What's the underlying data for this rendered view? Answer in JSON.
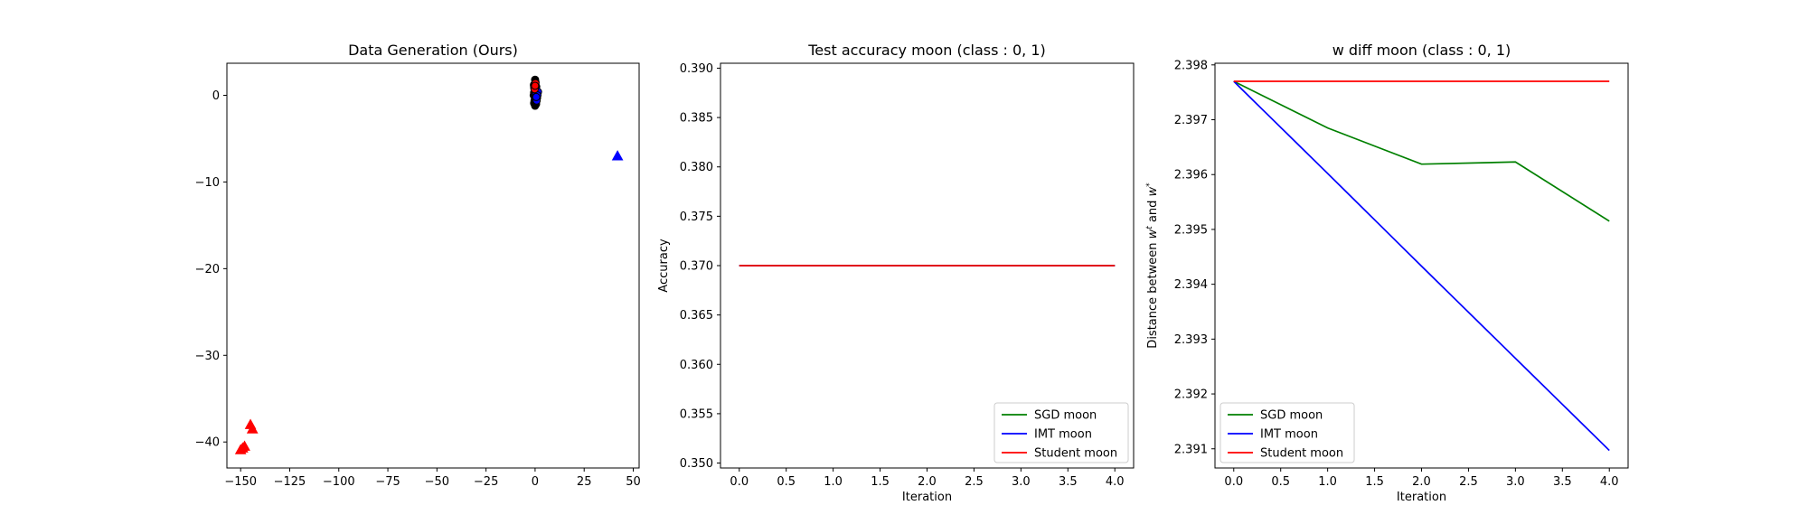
{
  "chart_data": [
    {
      "type": "scatter",
      "title": "Data Generation (Ours)",
      "xlabel": "",
      "ylabel": "",
      "xlim": [
        -157,
        53
      ],
      "ylim": [
        -43,
        3.7
      ],
      "xticks": [
        -150,
        -125,
        -100,
        -75,
        -50,
        -25,
        0,
        25,
        50
      ],
      "xtick_labels": [
        "−150",
        "−125",
        "−100",
        "−75",
        "−50",
        "−25",
        "0",
        "25",
        "50"
      ],
      "yticks": [
        0,
        -10,
        -20,
        -30,
        -40
      ],
      "ytick_labels": [
        "0",
        "−10",
        "−20",
        "−30",
        "−40"
      ],
      "grid": false,
      "groups": [
        {
          "marker": "circle",
          "color": "#000000",
          "points": [
            [
              0,
              0
            ],
            [
              0.5,
              0.5
            ],
            [
              -0.5,
              0.3
            ],
            [
              0.3,
              -0.4
            ],
            [
              -0.3,
              -0.6
            ],
            [
              0.6,
              1.0
            ],
            [
              -0.6,
              1.2
            ],
            [
              0.2,
              1.5
            ],
            [
              -0.2,
              -1.0
            ],
            [
              0.4,
              -0.8
            ],
            [
              -0.4,
              0.8
            ],
            [
              0.1,
              0.2
            ],
            [
              -0.1,
              -0.2
            ],
            [
              0.7,
              0.0
            ],
            [
              -0.7,
              0.0
            ],
            [
              0.0,
              1.8
            ],
            [
              0.0,
              -1.2
            ],
            [
              0.5,
              -1.0
            ],
            [
              -0.5,
              -0.9
            ],
            [
              0.2,
              0.6
            ]
          ]
        },
        {
          "marker": "circle",
          "color": "#0000ff",
          "points": [
            [
              0.5,
              0.2
            ],
            [
              1.0,
              -0.3
            ],
            [
              1.5,
              0.4
            ],
            [
              0.8,
              -0.6
            ],
            [
              1.2,
              0.0
            ],
            [
              0.6,
              -0.2
            ]
          ]
        },
        {
          "marker": "circle",
          "color": "#ff0000",
          "points": [
            [
              -0.5,
              1.0
            ],
            [
              0.2,
              1.4
            ],
            [
              -0.2,
              0.7
            ],
            [
              0.0,
              1.1
            ]
          ]
        },
        {
          "marker": "triangle",
          "color": "#0000ff",
          "points": [
            [
              42,
              -7
            ]
          ]
        },
        {
          "marker": "triangle",
          "color": "#ff0000",
          "points": [
            [
              -149,
              -40.7
            ],
            [
              -148,
              -40.5
            ],
            [
              -145,
              -38.0
            ],
            [
              -144,
              -38.5
            ],
            [
              -150,
              -40.9
            ]
          ]
        }
      ]
    },
    {
      "type": "line",
      "title": "Test accuracy moon (class : 0, 1)",
      "xlabel": "Iteration",
      "ylabel": "Accuracy",
      "xlim": [
        -0.2,
        4.2
      ],
      "ylim": [
        0.3495,
        0.3905
      ],
      "xticks": [
        0,
        0.5,
        1,
        1.5,
        2,
        2.5,
        3,
        3.5,
        4
      ],
      "xtick_labels": [
        "0.0",
        "0.5",
        "1.0",
        "1.5",
        "2.0",
        "2.5",
        "3.0",
        "3.5",
        "4.0"
      ],
      "yticks": [
        0.35,
        0.355,
        0.36,
        0.365,
        0.37,
        0.375,
        0.38,
        0.385,
        0.39
      ],
      "ytick_labels": [
        "0.350",
        "0.355",
        "0.360",
        "0.365",
        "0.370",
        "0.375",
        "0.380",
        "0.385",
        "0.390"
      ],
      "grid": false,
      "legend_position": "bottom-right",
      "x": [
        0,
        1,
        2,
        3,
        4
      ],
      "series": [
        {
          "name": "SGD moon",
          "color": "#008000",
          "values": [
            0.37,
            0.37,
            0.37,
            0.37,
            0.37
          ]
        },
        {
          "name": "IMT moon",
          "color": "#0000ff",
          "values": [
            0.37,
            0.37,
            0.37,
            0.37,
            0.37
          ]
        },
        {
          "name": "Student moon",
          "color": "#ff0000",
          "values": [
            0.37,
            0.37,
            0.37,
            0.37,
            0.37
          ]
        }
      ]
    },
    {
      "type": "line",
      "title": "w diff moon (class : 0, 1)",
      "xlabel": "Iteration",
      "ylabel": "Distance between w^t and w^*",
      "ylabel_parts": {
        "prefix": "Distance between ",
        "w1": "w",
        "sup1": "t",
        "middle": " and ",
        "w2": "w",
        "sup2": "*"
      },
      "xlim": [
        -0.2,
        4.2
      ],
      "ylim": [
        2.39065,
        2.39803
      ],
      "xticks": [
        0,
        0.5,
        1,
        1.5,
        2,
        2.5,
        3,
        3.5,
        4
      ],
      "xtick_labels": [
        "0.0",
        "0.5",
        "1.0",
        "1.5",
        "2.0",
        "2.5",
        "3.0",
        "3.5",
        "4.0"
      ],
      "yticks": [
        2.391,
        2.392,
        2.393,
        2.394,
        2.395,
        2.396,
        2.397,
        2.398
      ],
      "ytick_labels": [
        "2.391",
        "2.392",
        "2.393",
        "2.394",
        "2.395",
        "2.396",
        "2.397",
        "2.398"
      ],
      "grid": false,
      "legend_position": "bottom-left",
      "x": [
        0,
        1,
        2,
        3,
        4
      ],
      "series": [
        {
          "name": "SGD moon",
          "color": "#008000",
          "values": [
            2.3977,
            2.39685,
            2.39619,
            2.39623,
            2.39515
          ]
        },
        {
          "name": "IMT moon",
          "color": "#0000ff",
          "values": [
            2.3977,
            2.39602,
            2.39433,
            2.39265,
            2.39097
          ]
        },
        {
          "name": "Student moon",
          "color": "#ff0000",
          "values": [
            2.3977,
            2.3977,
            2.3977,
            2.3977,
            2.3977
          ]
        }
      ]
    }
  ]
}
